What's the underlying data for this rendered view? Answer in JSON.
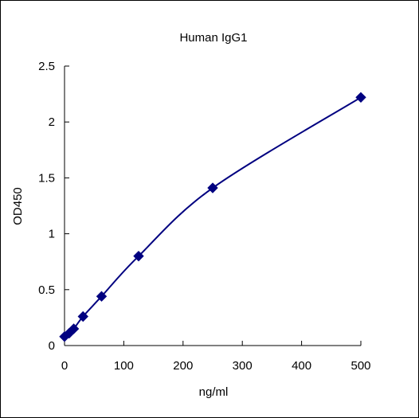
{
  "chart_data": {
    "type": "scatter",
    "title": "Human IgG1",
    "xlabel": "ng/ml",
    "ylabel": "OD450",
    "xlim": [
      0,
      500
    ],
    "ylim": [
      0,
      2.5
    ],
    "x_ticks": [
      0,
      100,
      200,
      300,
      400,
      500
    ],
    "x_tick_labels": [
      "0",
      "100",
      "200",
      "300",
      "400",
      "500"
    ],
    "y_ticks": [
      0,
      0.5,
      1,
      1.5,
      2,
      2.5
    ],
    "y_tick_labels": [
      "0",
      "0.5",
      "1",
      "1.5",
      "2",
      "2.5"
    ],
    "grid": false,
    "legend": "none",
    "colors": {
      "series": "#000080",
      "axis": "#000000"
    },
    "series": [
      {
        "marker": "diamond",
        "line": "smooth",
        "x": [
          0,
          7.8,
          15.6,
          31.25,
          62.5,
          125,
          250,
          500
        ],
        "y": [
          0.08,
          0.11,
          0.15,
          0.26,
          0.44,
          0.8,
          1.41,
          2.22
        ]
      }
    ]
  }
}
